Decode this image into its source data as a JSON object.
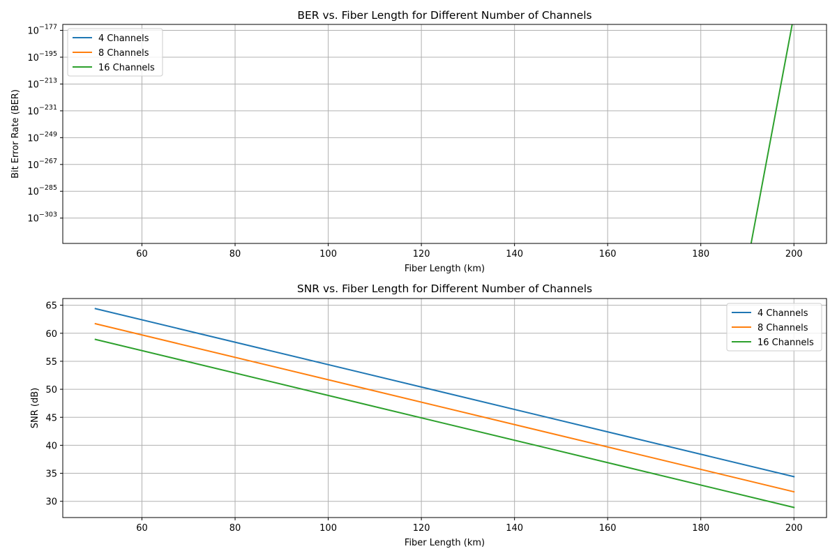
{
  "chart_data": [
    {
      "type": "line",
      "title": "BER vs. Fiber Length for Different Number of Channels",
      "xlabel": "Fiber Length (km)",
      "ylabel": "Bit Error Rate (BER)",
      "yscale": "log",
      "xlim": [
        43,
        207
      ],
      "ylim_exponent": [
        -320,
        -173
      ],
      "x_ticks": [
        60,
        80,
        100,
        120,
        140,
        160,
        180,
        200
      ],
      "y_tick_exponents": [
        -177,
        -195,
        -213,
        -231,
        -249,
        -267,
        -285,
        -303
      ],
      "y_tick_base": "10",
      "y_tick_sign": "−",
      "grid": true,
      "legend_position": "top-left",
      "series": [
        {
          "name": "4 Channels",
          "color": "#1f77b4",
          "points": []
        },
        {
          "name": "8 Channels",
          "color": "#ff7f0e",
          "points": []
        },
        {
          "name": "16 Channels",
          "color": "#2ca02c",
          "points": [
            [
              190.8,
              -320
            ],
            [
              200,
              -166.7
            ]
          ]
        }
      ]
    },
    {
      "type": "line",
      "title": "SNR vs. Fiber Length for Different Number of Channels",
      "xlabel": "Fiber Length (km)",
      "ylabel": "SNR (dB)",
      "xlim": [
        43,
        207
      ],
      "ylim": [
        27.1,
        66.2
      ],
      "x_ticks": [
        60,
        80,
        100,
        120,
        140,
        160,
        180,
        200
      ],
      "y_ticks": [
        30,
        35,
        40,
        45,
        50,
        55,
        60,
        65
      ],
      "grid": true,
      "legend_position": "top-right",
      "series": [
        {
          "name": "4 Channels",
          "color": "#1f77b4",
          "points": [
            [
              50,
              64.4
            ],
            [
              200,
              34.4
            ]
          ]
        },
        {
          "name": "8 Channels",
          "color": "#ff7f0e",
          "points": [
            [
              50,
              61.7
            ],
            [
              200,
              31.7
            ]
          ]
        },
        {
          "name": "16 Channels",
          "color": "#2ca02c",
          "points": [
            [
              50,
              58.9
            ],
            [
              200,
              28.9
            ]
          ]
        }
      ]
    }
  ]
}
